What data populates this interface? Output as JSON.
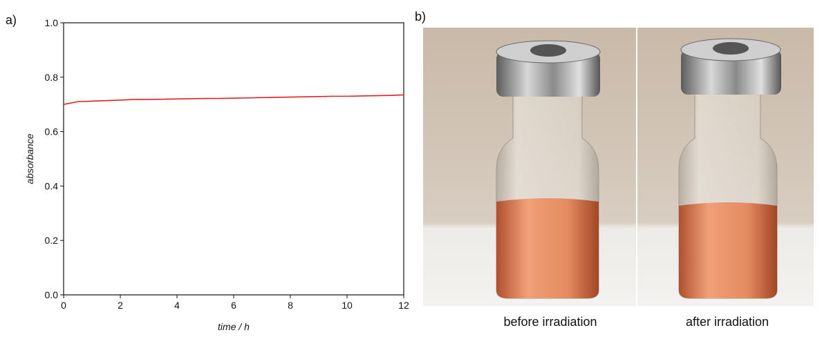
{
  "chart_data": {
    "type": "line",
    "x_label": "time / h",
    "y_label": "absorbance",
    "x": [
      0,
      0.5,
      1,
      1.5,
      2,
      2.5,
      3,
      3.5,
      4,
      4.5,
      5,
      5.5,
      6,
      6.5,
      7,
      7.5,
      8,
      8.5,
      9,
      9.5,
      10,
      10.5,
      11,
      11.5,
      12
    ],
    "series": [
      {
        "name": "absorbance",
        "color": "#e02020",
        "values": [
          0.7,
          0.71,
          0.712,
          0.714,
          0.716,
          0.718,
          0.718,
          0.719,
          0.72,
          0.721,
          0.722,
          0.722,
          0.723,
          0.724,
          0.725,
          0.726,
          0.727,
          0.728,
          0.729,
          0.73,
          0.73,
          0.731,
          0.732,
          0.733,
          0.735
        ]
      }
    ],
    "xlim": [
      0,
      12
    ],
    "xticks": [
      0,
      2,
      4,
      6,
      8,
      10,
      12
    ],
    "ylim": [
      0,
      1
    ],
    "yticks": [
      {
        "value": 0,
        "label": "0.0"
      },
      0.2,
      0.4,
      0.6,
      0.8,
      {
        "value": 1,
        "label": "1.0"
      }
    ],
    "grid": false
  },
  "panel_a": "a)",
  "panel_b": "b)",
  "photos": [
    {
      "caption": "before irradiation"
    },
    {
      "caption": "after irradiation"
    }
  ]
}
